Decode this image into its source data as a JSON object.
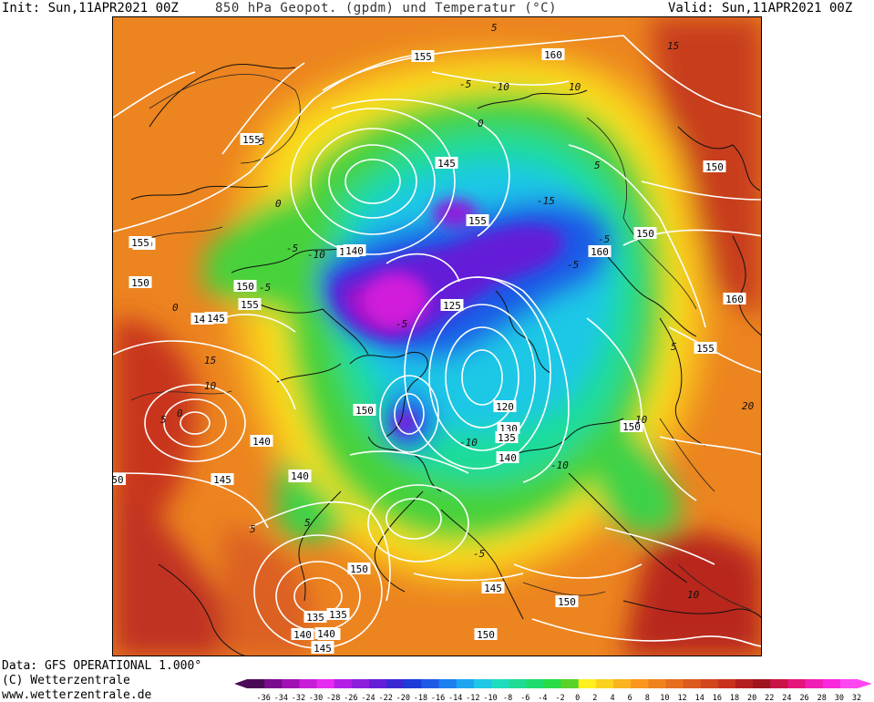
{
  "header": {
    "init": "Init: Sun,11APR2021 00Z",
    "title": "850 hPa Geopot. (gpdm) und Temperatur (°C)",
    "valid": "Valid: Sun,11APR2021 00Z"
  },
  "footer": {
    "data_source": "Data: GFS OPERATIONAL 1.000°",
    "copyright": "(C) Wetterzentrale",
    "url": "www.wetterzentrale.de"
  },
  "colorbar": {
    "ticks": [
      "-36",
      "-34",
      "-32",
      "-30",
      "-28",
      "-26",
      "-24",
      "-22",
      "-20",
      "-18",
      "-16",
      "-14",
      "-12",
      "-10",
      "-8",
      "-6",
      "-4",
      "-2",
      "0",
      "2",
      "4",
      "6",
      "8",
      "10",
      "12",
      "14",
      "16",
      "18",
      "20",
      "22",
      "24",
      "26",
      "28",
      "30",
      "32"
    ],
    "colors": [
      "#4b0a55",
      "#7a0b8c",
      "#a012b4",
      "#c81ed8",
      "#e62cf0",
      "#b41ee6",
      "#8c1edc",
      "#641ed7",
      "#3c28d2",
      "#1e3cd7",
      "#1e5ae6",
      "#1e7ff0",
      "#1ea5f0",
      "#1ec8e6",
      "#1edcbe",
      "#1edc96",
      "#1edc6e",
      "#28dc46",
      "#5ad228",
      "#fff01e",
      "#fad21e",
      "#fab41e",
      "#fa961e",
      "#f0821e",
      "#e66e1e",
      "#dc5a1e",
      "#d2461e",
      "#c8321e",
      "#b41e1e",
      "#a0141e",
      "#c81446",
      "#e6147d",
      "#f01eb4",
      "#fa28dc",
      "#ff46f0"
    ]
  },
  "map": {
    "height_labels": [
      "155",
      "160",
      "155",
      "150",
      "155",
      "145",
      "140",
      "155",
      "150",
      "155",
      "140",
      "150",
      "145",
      "150",
      "145",
      "140",
      "145",
      "140",
      "135",
      "150",
      "125",
      "120",
      "130",
      "135",
      "140",
      "160",
      "150",
      "160",
      "155",
      "150",
      "145",
      "150",
      "150",
      "140",
      "145",
      "150",
      "135",
      "145",
      "140",
      "145",
      "50",
      "135",
      "140"
    ],
    "temp_labels": [
      "5",
      "10",
      "5",
      "0",
      "-5",
      "-10",
      "-5",
      "0",
      "-5",
      "-10",
      "-15",
      "5",
      "0",
      "-5",
      "-10",
      "5",
      "0",
      "10",
      "5",
      "-5",
      "-10",
      "10",
      "5",
      "15",
      "-5",
      "-5",
      "15",
      "5",
      "10",
      "20"
    ]
  }
}
